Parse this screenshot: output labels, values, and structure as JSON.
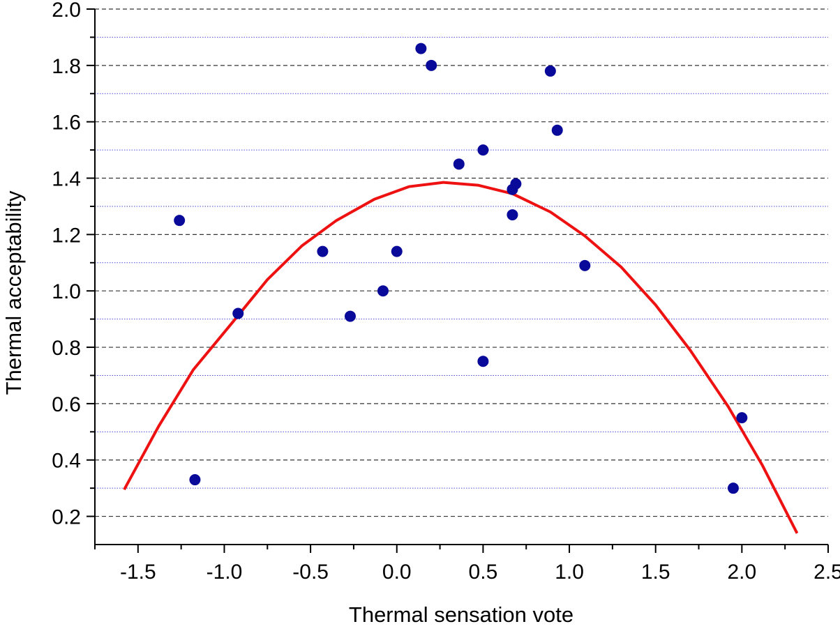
{
  "chart_data": {
    "type": "scatter",
    "title": "",
    "xlabel": "Thermal sensation vote",
    "ylabel": "Thermal acceptability",
    "xlim": [
      -1.75,
      2.5
    ],
    "ylim": [
      0.1,
      2.0
    ],
    "x_ticks": [
      "-1.5",
      "-1.0",
      "-0.5",
      "0.0",
      "0.5",
      "1.0",
      "1.5",
      "2.0",
      "2.5"
    ],
    "y_ticks": [
      "0.2",
      "0.4",
      "0.6",
      "0.8",
      "1.0",
      "1.2",
      "1.4",
      "1.6",
      "1.8",
      "2.0"
    ],
    "grid": "horizontal dashed major lines, dotted blue minor lines",
    "legend": "none",
    "colors": {
      "points": "#0a0a9a",
      "fit_line": "#ee1111",
      "major_grid": "#333333",
      "minor_grid": "#4a4ad8"
    },
    "series": [
      {
        "type": "scatter",
        "points": [
          {
            "x": -1.26,
            "y": 1.25
          },
          {
            "x": -1.17,
            "y": 0.33
          },
          {
            "x": -0.92,
            "y": 0.92
          },
          {
            "x": -0.43,
            "y": 1.14
          },
          {
            "x": -0.27,
            "y": 0.91
          },
          {
            "x": -0.08,
            "y": 1.0
          },
          {
            "x": 0.0,
            "y": 1.14
          },
          {
            "x": 0.14,
            "y": 1.86
          },
          {
            "x": 0.2,
            "y": 1.8
          },
          {
            "x": 0.36,
            "y": 1.45
          },
          {
            "x": 0.5,
            "y": 1.5
          },
          {
            "x": 0.5,
            "y": 0.75
          },
          {
            "x": 0.67,
            "y": 1.36
          },
          {
            "x": 0.69,
            "y": 1.38
          },
          {
            "x": 0.67,
            "y": 1.27
          },
          {
            "x": 0.89,
            "y": 1.78
          },
          {
            "x": 0.93,
            "y": 1.57
          },
          {
            "x": 1.09,
            "y": 1.09
          },
          {
            "x": 1.95,
            "y": 0.3
          },
          {
            "x": 2.0,
            "y": 0.55
          }
        ]
      },
      {
        "type": "line",
        "points": [
          {
            "x": -1.58,
            "y": 0.295
          },
          {
            "x": -1.38,
            "y": 0.52
          },
          {
            "x": -1.18,
            "y": 0.72
          },
          {
            "x": -0.95,
            "y": 0.89
          },
          {
            "x": -0.75,
            "y": 1.04
          },
          {
            "x": -0.55,
            "y": 1.16
          },
          {
            "x": -0.35,
            "y": 1.25
          },
          {
            "x": -0.13,
            "y": 1.325
          },
          {
            "x": 0.07,
            "y": 1.37
          },
          {
            "x": 0.27,
            "y": 1.385
          },
          {
            "x": 0.47,
            "y": 1.375
          },
          {
            "x": 0.67,
            "y": 1.345
          },
          {
            "x": 0.89,
            "y": 1.28
          },
          {
            "x": 1.09,
            "y": 1.195
          },
          {
            "x": 1.3,
            "y": 1.085
          },
          {
            "x": 1.5,
            "y": 0.95
          },
          {
            "x": 1.7,
            "y": 0.79
          },
          {
            "x": 1.92,
            "y": 0.59
          },
          {
            "x": 2.12,
            "y": 0.38
          },
          {
            "x": 2.32,
            "y": 0.14
          }
        ]
      }
    ]
  }
}
